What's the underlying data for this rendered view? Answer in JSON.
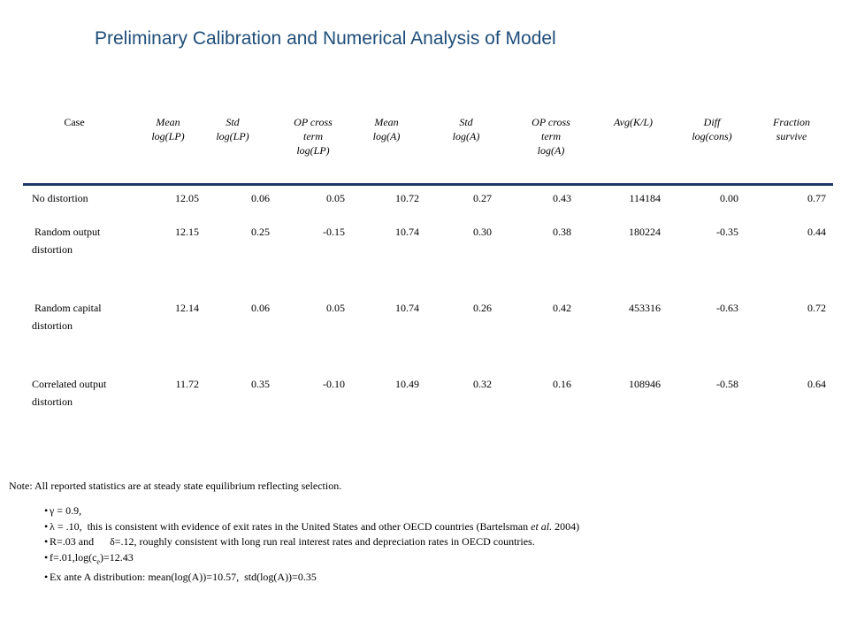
{
  "title": "Preliminary Calibration and Numerical Analysis of Model",
  "table": {
    "headers": [
      "Case",
      "Mean\nlog(LP)",
      "Std\nlog(LP)",
      "OP cross\nterm\nlog(LP)",
      "Mean\nlog(A)",
      "Std\nlog(A)",
      "OP cross\nterm\nlog(A)",
      "Avg(K/L)",
      "Diff\nlog(cons)",
      "Fraction\nsurvive"
    ],
    "rows": [
      {
        "case": "No distortion",
        "values": [
          "12.05",
          "0.06",
          "0.05",
          "10.72",
          "0.27",
          "0.43",
          "114184",
          "0.00",
          "0.77"
        ]
      },
      {
        "case": " Random output distortion",
        "values": [
          "12.15",
          "0.25",
          "-0.15",
          "10.74",
          "0.30",
          "0.38",
          "180224",
          "-0.35",
          "0.44"
        ]
      },
      {
        "case": " Random capital distortion",
        "values": [
          "12.14",
          "0.06",
          "0.05",
          "10.74",
          "0.26",
          "0.42",
          "453316",
          "-0.63",
          "0.72"
        ]
      },
      {
        "case": "Correlated output distortion",
        "values": [
          "11.72",
          "0.35",
          "-0.10",
          "10.49",
          "0.32",
          "0.16",
          "108946",
          "-0.58",
          "0.64"
        ]
      }
    ]
  },
  "notes": {
    "note": "Note:  All reported statistics are at steady state equilibrium reflecting selection.",
    "bullet_glyph": "•",
    "bullets": [
      {
        "parts": [
          {
            "t": "γ = 0.9,"
          }
        ]
      },
      {
        "parts": [
          {
            "t": "λ = .10,  this is consistent with evidence of exit rates in the United States and other OECD countries (Bartelsman "
          },
          {
            "t": "et al.",
            "i": true
          },
          {
            "t": " 2004)"
          }
        ]
      },
      {
        "parts": [
          {
            "t": "R=.03 and      δ=.12, roughly consistent with long run real interest rates and depreciation rates in OECD countries."
          }
        ]
      },
      {
        "parts": [
          {
            "t": "f=.01,log(c"
          },
          {
            "t": "e",
            "sub": true
          },
          {
            "t": ")=12.43"
          }
        ]
      },
      {
        "parts": [
          {
            "t": "Ex ante A distribution: mean(log(A))=10.57,  std(log(A))=0.35"
          }
        ]
      }
    ]
  },
  "colors": {
    "title": "#1f4e79",
    "rule": "#1f3864"
  }
}
